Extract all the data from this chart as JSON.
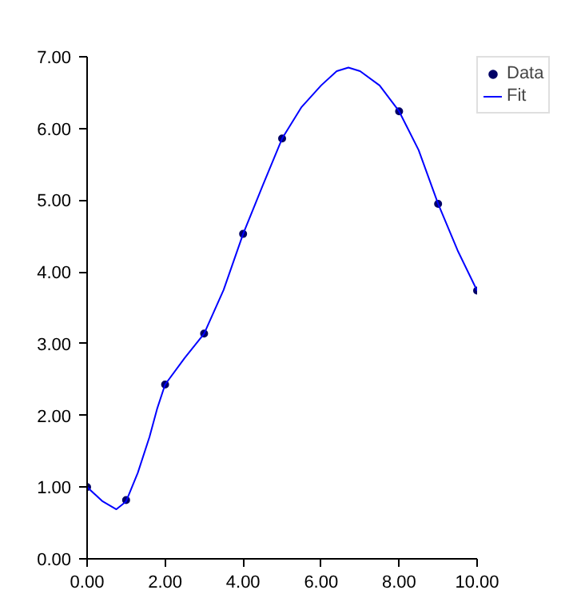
{
  "chart_data": {
    "type": "scatter",
    "xlim": [
      0,
      10
    ],
    "ylim": [
      0,
      7
    ],
    "xticks": [
      {
        "value": 0,
        "label": "0.00"
      },
      {
        "value": 2,
        "label": "2.00"
      },
      {
        "value": 4,
        "label": "4.00"
      },
      {
        "value": 6,
        "label": "6.00"
      },
      {
        "value": 8,
        "label": "8.00"
      },
      {
        "value": 10,
        "label": "10.00"
      }
    ],
    "yticks": [
      {
        "value": 0,
        "label": "0.00"
      },
      {
        "value": 1,
        "label": "1.00"
      },
      {
        "value": 2,
        "label": "2.00"
      },
      {
        "value": 3,
        "label": "3.00"
      },
      {
        "value": 4,
        "label": "4.00"
      },
      {
        "value": 5,
        "label": "5.00"
      },
      {
        "value": 6,
        "label": "6.00"
      },
      {
        "value": 7,
        "label": "7.00"
      }
    ],
    "grid": false,
    "legend": "right",
    "series": [
      {
        "name": "Data",
        "marker": "circle",
        "color": "#000066",
        "x": [
          0,
          1,
          2,
          3,
          4,
          5,
          8,
          9,
          10
        ],
        "values": [
          1.0,
          0.82,
          2.43,
          3.14,
          4.53,
          5.86,
          6.24,
          4.95,
          3.74
        ]
      },
      {
        "name": "Fit",
        "type": "line",
        "color": "#0000ff",
        "line_style": "solid",
        "marker": "none",
        "x": [
          0,
          0.4,
          0.75,
          1,
          1.3,
          1.6,
          1.8,
          2,
          2.5,
          3,
          3.5,
          4,
          4.5,
          5,
          5.5,
          6,
          6.4,
          6.7,
          7,
          7.5,
          8,
          8.5,
          9,
          9.5,
          10
        ],
        "values": [
          1.0,
          0.8,
          0.69,
          0.8,
          1.2,
          1.7,
          2.1,
          2.43,
          2.8,
          3.14,
          3.75,
          4.53,
          5.2,
          5.86,
          6.3,
          6.6,
          6.8,
          6.85,
          6.8,
          6.6,
          6.24,
          5.7,
          4.95,
          4.3,
          3.74
        ]
      }
    ]
  }
}
